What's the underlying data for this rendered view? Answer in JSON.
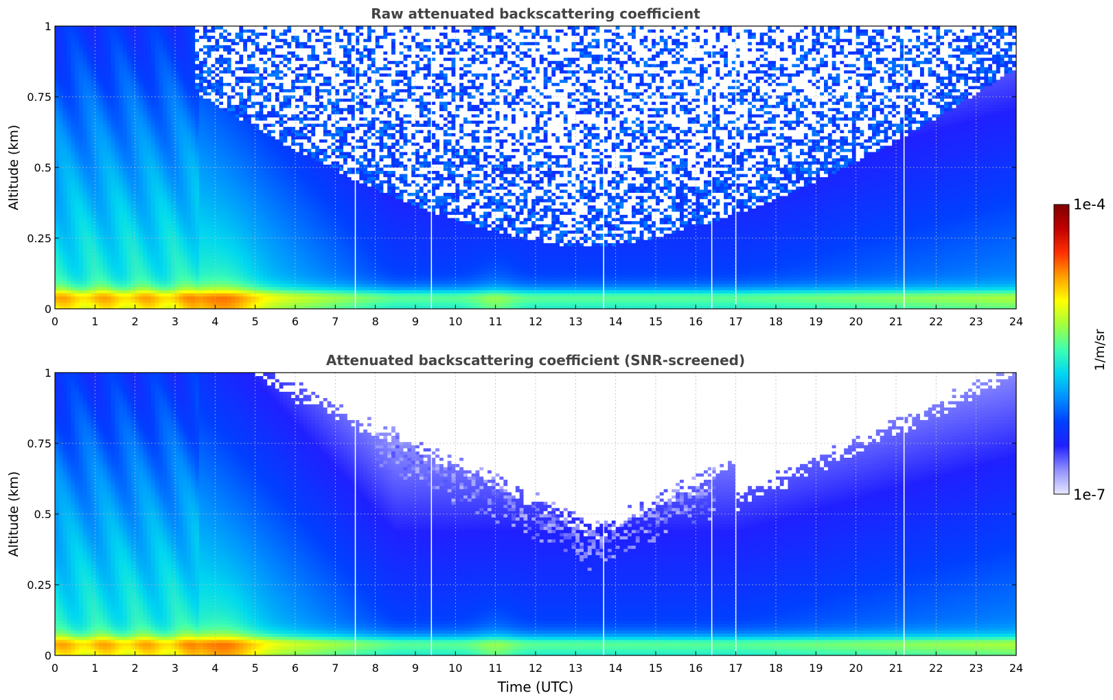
{
  "chart_data": [
    {
      "type": "heatmap",
      "title": "Raw attenuated backscattering coefficient",
      "ylabel": "Altitude (km)",
      "xlabel": "",
      "xlim": [
        0,
        24
      ],
      "ylim": [
        0,
        1
      ],
      "x_ticks": [
        "0",
        "1",
        "2",
        "3",
        "4",
        "5",
        "6",
        "7",
        "8",
        "9",
        "10",
        "11",
        "12",
        "13",
        "14",
        "15",
        "16",
        "17",
        "18",
        "19",
        "20",
        "21",
        "22",
        "23",
        "24"
      ],
      "y_ticks": [
        "0",
        "0.25",
        "0.5",
        "0.75",
        "1"
      ],
      "grid": true,
      "data_gaps_utc": [
        7.5,
        9.4,
        13.7,
        16.4,
        17.0,
        21.2
      ],
      "color_scale": "log",
      "screened": false
    },
    {
      "type": "heatmap",
      "title": "Attenuated backscattering coefficient (SNR-screened)",
      "ylabel": "Altitude (km)",
      "xlabel": "Time (UTC)",
      "xlim": [
        0,
        24
      ],
      "ylim": [
        0,
        1
      ],
      "x_ticks": [
        "0",
        "1",
        "2",
        "3",
        "4",
        "5",
        "6",
        "7",
        "8",
        "9",
        "10",
        "11",
        "12",
        "13",
        "14",
        "15",
        "16",
        "17",
        "18",
        "19",
        "20",
        "21",
        "22",
        "23",
        "24"
      ],
      "y_ticks": [
        "0",
        "0.25",
        "0.5",
        "0.75",
        "1"
      ],
      "grid": true,
      "data_gaps_utc": [
        7.5,
        9.4,
        13.7,
        16.4,
        17.0,
        21.2
      ],
      "color_scale": "log",
      "screened": true
    }
  ],
  "colorbar": {
    "label": "1/m/sr",
    "max_label": "1e-4",
    "min_label": "1e-7",
    "vmin": 1e-07,
    "vmax": 0.0001,
    "scale": "log",
    "colormap": [
      "#e8e8ff",
      "#9090ff",
      "#2020ff",
      "#0040ff",
      "#0090ff",
      "#00d8f0",
      "#40ffb0",
      "#a0ff40",
      "#ffff00",
      "#ffa000",
      "#ff3000",
      "#c00000",
      "#800000"
    ]
  }
}
